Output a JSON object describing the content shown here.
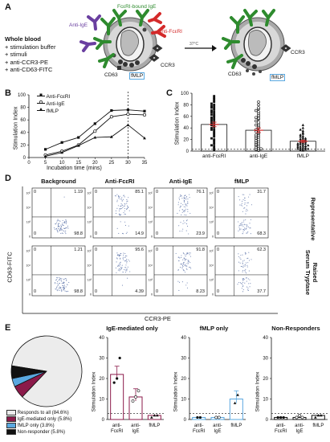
{
  "panelA": {
    "letter": "A",
    "label_fceri_ige": "FcεRI-bound IgE",
    "label_anti_ige": "Anti-IgE",
    "label_anti_fceri": "Anti-FcεRI",
    "label_ccr3": "CCR3",
    "label_cd63": "CD63",
    "label_fmlp": "fMLP",
    "arrow_text": "37°C",
    "label_ccr3_right": "CCR3",
    "label_cd63_right": "CD63",
    "label_fmlp_right": "fMLP",
    "recipe": [
      "Whole blood",
      "+ stimulation buffer",
      "+ stimuli",
      "+ anti-CCR3-PE",
      "+ anti-CD63-FITC"
    ]
  },
  "panelB": {
    "letter": "B",
    "chart_data": {
      "type": "line",
      "xlabel": "Incubation time (mins)",
      "ylabel": "Stimulation Index",
      "x": [
        5,
        10,
        15,
        20,
        25,
        30,
        35
      ],
      "xticks": [
        "0",
        "5",
        "10",
        "15",
        "20",
        "25",
        "30",
        "35"
      ],
      "yticks": [
        "0",
        "20",
        "40",
        "60",
        "80",
        "100"
      ],
      "ylim": [
        0,
        100
      ],
      "xlim": [
        0,
        35
      ],
      "series": [
        {
          "name": "Anti-FcεRI",
          "values": [
            13,
            24,
            32,
            54,
            75,
            76,
            74
          ]
        },
        {
          "name": "Anti-IgE",
          "values": [
            4,
            10,
            20,
            42,
            65,
            69,
            68
          ]
        },
        {
          "name": "fMLP",
          "values": [
            2,
            8,
            19,
            32,
            33,
            52,
            31
          ]
        }
      ],
      "annotation_x": 30
    }
  },
  "panelC": {
    "letter": "C",
    "chart_data": {
      "type": "scatter",
      "ylabel": "Stimulation Index",
      "categories": [
        "anti-FcεRI",
        "anti-IgE",
        "fMLP"
      ],
      "yticks": [
        "0",
        "20",
        "40",
        "60",
        "80",
        "100"
      ],
      "ylim": [
        0,
        100
      ],
      "means": [
        46,
        36,
        17
      ],
      "sems": [
        4,
        4,
        2
      ],
      "series": [
        {
          "values": [
            2,
            5,
            8,
            10,
            12,
            15,
            18,
            20,
            22,
            25,
            27,
            30,
            32,
            35,
            37,
            38,
            40,
            42,
            44,
            45,
            47,
            48,
            50,
            52,
            54,
            55,
            57,
            58,
            60,
            62,
            63,
            65,
            67,
            68,
            70,
            72,
            74,
            75,
            77,
            78,
            80,
            82,
            85,
            87,
            90,
            92,
            95
          ]
        },
        {
          "values": [
            1,
            2,
            3,
            4,
            5,
            6,
            8,
            10,
            11,
            12,
            14,
            15,
            17,
            18,
            20,
            22,
            24,
            25,
            27,
            28,
            30,
            32,
            34,
            35,
            37,
            40,
            42,
            44,
            45,
            47,
            50,
            52,
            55,
            57,
            58,
            60,
            62,
            65,
            68,
            70,
            73,
            75,
            80,
            85
          ]
        },
        {
          "values": [
            1,
            2,
            2,
            3,
            4,
            4,
            5,
            5,
            6,
            7,
            8,
            8,
            9,
            10,
            10,
            11,
            12,
            13,
            13,
            14,
            15,
            16,
            17,
            18,
            19,
            20,
            21,
            22,
            23,
            25,
            26,
            28,
            30,
            32,
            35,
            37,
            40,
            45
          ]
        }
      ]
    }
  },
  "panelD": {
    "letter": "D",
    "col_headers": [
      "Background",
      "Anti-FcεRI",
      "Anti-IgE",
      "fMLP"
    ],
    "row_labels": [
      "Representative",
      "Raised\nSerum Tryptase"
    ],
    "y_axis": "CD63-FITC",
    "x_axis": "CCR3-PE",
    "quad_values": [
      [
        [
          "0",
          "1.19",
          "0",
          "98.8"
        ],
        [
          "0",
          "85.1",
          "0",
          "14.9"
        ],
        [
          "0",
          "76.1",
          "0",
          "23.9"
        ],
        [
          "0",
          "31.7",
          "0",
          "68.3"
        ]
      ],
      [
        [
          "0",
          "1.21",
          "0",
          "98.8"
        ],
        [
          "0",
          "95.6",
          "0",
          "4.39"
        ],
        [
          "0",
          "91.8",
          "0",
          "8.23"
        ],
        [
          "0",
          "62.3",
          "0",
          "37.7"
        ]
      ]
    ],
    "tick_labels": [
      "10⁵",
      "10⁴",
      "10³",
      "0"
    ]
  },
  "panelE": {
    "letter": "E",
    "pie": {
      "type": "pie",
      "slices": [
        {
          "label": "Responds to all (84.6%)",
          "value": 84.6,
          "color": "#ececec"
        },
        {
          "label": "IgE-mediated only (5.8%)",
          "value": 5.8,
          "color": "#8b1a4a"
        },
        {
          "label": "fMLP only (3.8%)",
          "value": 3.8,
          "color": "#5aa8e0"
        },
        {
          "label": "Non-responder (5.8%)",
          "value": 5.8,
          "color": "#111111"
        }
      ]
    },
    "subcharts": [
      {
        "title": "IgE-mediated only",
        "categories": [
          "anti-\nFcεRI",
          "anti-\nIgE",
          "fMLP"
        ],
        "values": [
          22,
          11,
          2
        ],
        "color": "#8b1a4a",
        "points": [
          [
            18,
            20,
            30
          ],
          [
            9,
            11,
            14
          ],
          [
            1,
            2,
            2
          ]
        ]
      },
      {
        "title": "fMLP only",
        "categories": [
          "anti-\nFcεRI",
          "anti-\nIgE",
          "fMLP"
        ],
        "values": [
          1,
          1,
          10
        ],
        "color": "#5aa8e0",
        "points": [
          [
            1,
            1
          ],
          [
            1,
            1
          ],
          [
            8,
            12
          ]
        ]
      },
      {
        "title": "Non-Responders",
        "categories": [
          "anti-\nFcεRI",
          "anti-\nIgE",
          "fMLP"
        ],
        "values": [
          1,
          1,
          2
        ],
        "color": "#111111",
        "points": [
          [
            1,
            1,
            1
          ],
          [
            1,
            2,
            1
          ],
          [
            1,
            2,
            2
          ]
        ]
      }
    ],
    "ylabel": "Stimulation Index",
    "yticks": [
      "0",
      "10",
      "20",
      "30",
      "40"
    ],
    "ylim": [
      0,
      40
    ]
  }
}
